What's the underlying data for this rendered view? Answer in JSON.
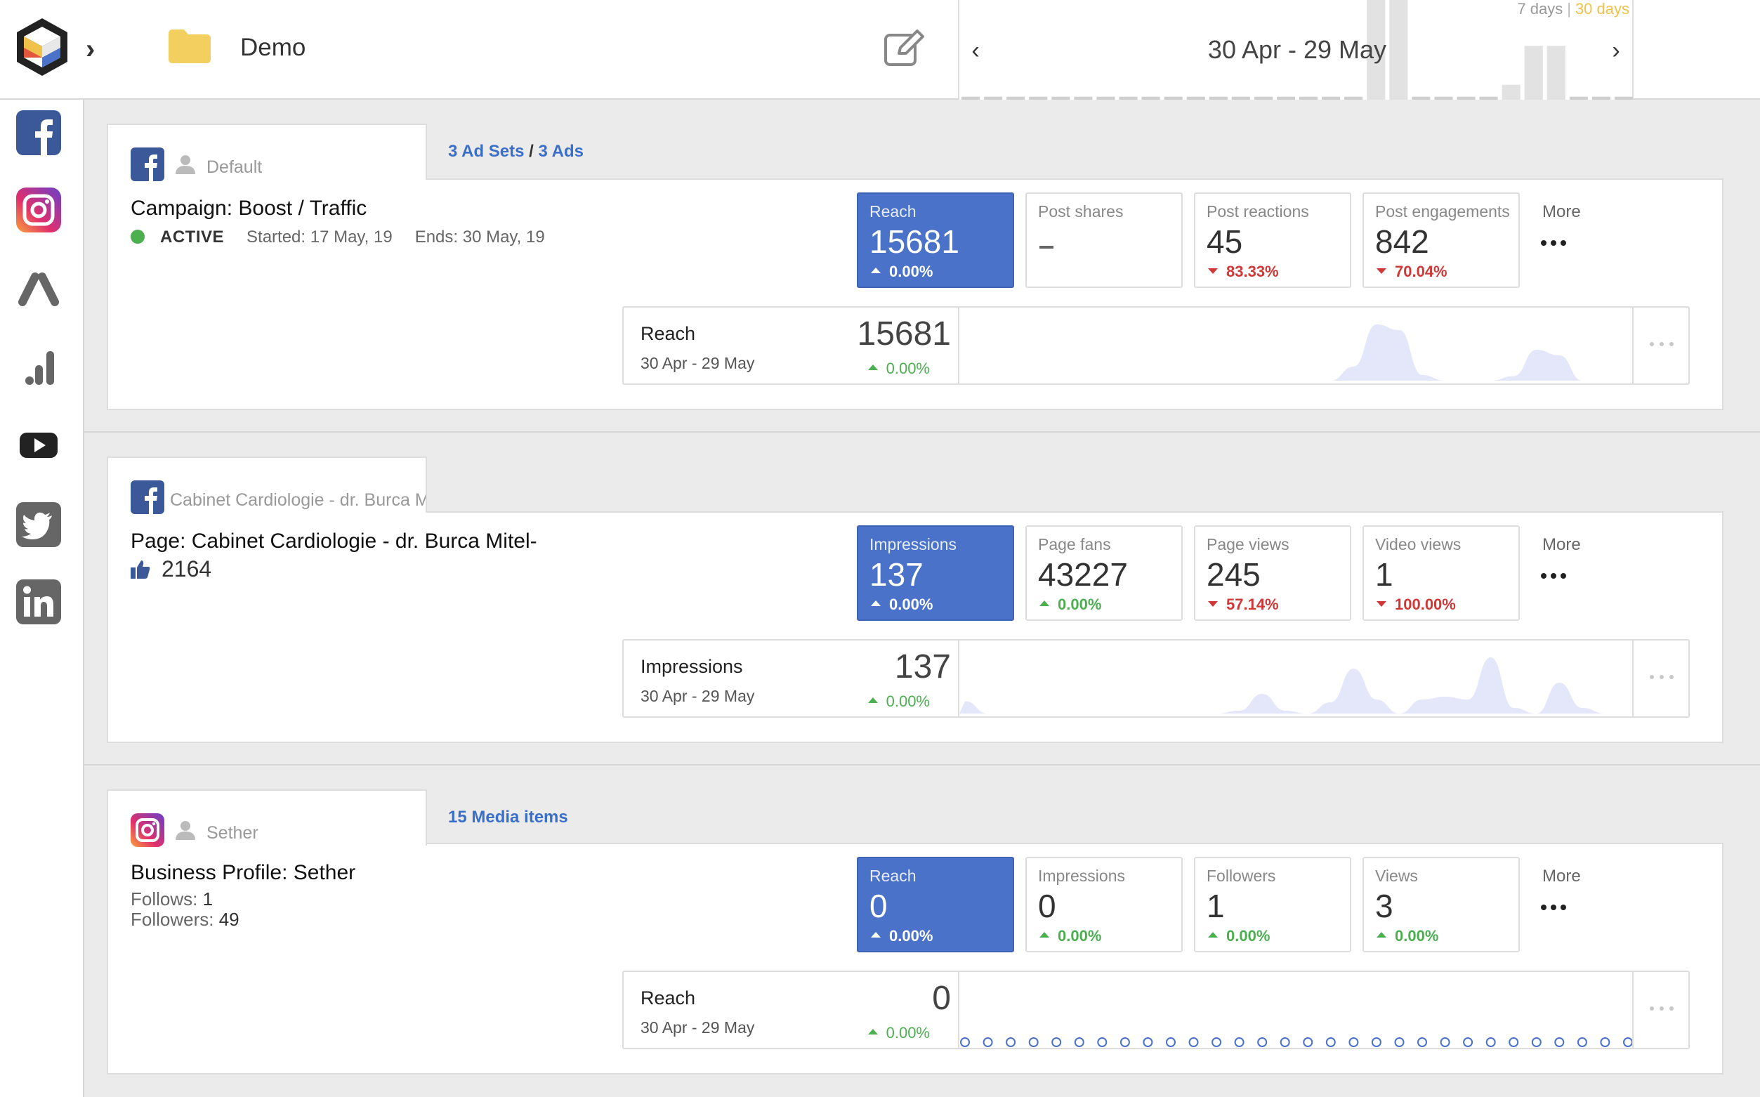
{
  "header": {
    "workspace_name": "Demo",
    "range_options": [
      "7 days",
      "30 days"
    ],
    "active_range": "30 days",
    "date_range": "30 Apr - 29 May",
    "range_separator": "|",
    "icons": {
      "logo": "app-logo",
      "folder": "folder-icon",
      "edit": "edit-icon",
      "prev": "chevron-left-icon",
      "next": "chevron-right-icon"
    },
    "mini_bar_heights": [
      0.03,
      0.03,
      0.03,
      0.03,
      0.03,
      0.03,
      0.03,
      0.03,
      0.03,
      0.03,
      0.03,
      0.03,
      0.03,
      0.03,
      0.03,
      0.03,
      0.03,
      0.03,
      1.0,
      1.0,
      0.03,
      0.03,
      0.03,
      0.03,
      0.15,
      0.54,
      0.54,
      0.03,
      0.03,
      0.03
    ]
  },
  "sidebar": {
    "items": [
      {
        "name": "facebook",
        "icon": "facebook-icon"
      },
      {
        "name": "instagram",
        "icon": "instagram-icon"
      },
      {
        "name": "google-ads",
        "icon": "google-ads-icon"
      },
      {
        "name": "analytics",
        "icon": "analytics-icon"
      },
      {
        "name": "youtube",
        "icon": "youtube-icon"
      },
      {
        "name": "twitter",
        "icon": "twitter-icon"
      },
      {
        "name": "linkedin",
        "icon": "linkedin-icon"
      }
    ]
  },
  "cards": [
    {
      "network": "facebook",
      "account": "Default",
      "meta_adsets": "3 Ad Sets",
      "meta_sep": "/",
      "meta_ads": "3 Ads",
      "title": "Campaign: Boost / Traffic",
      "status": "ACTIVE",
      "started": "Started: 17 May, 19",
      "ends": "Ends: 30 May, 19",
      "metrics": [
        {
          "label": "Reach",
          "value": "15681",
          "change": "0.00%",
          "direction": "up",
          "selected": true
        },
        {
          "label": "Post shares",
          "value": "",
          "change": "",
          "direction": "none",
          "selected": false
        },
        {
          "label": "Post reactions",
          "value": "45",
          "change": "83.33%",
          "direction": "down",
          "selected": false
        },
        {
          "label": "Post engagements",
          "value": "842",
          "change": "70.04%",
          "direction": "down",
          "selected": false
        }
      ],
      "more_label": "More",
      "chart": {
        "metric": "Reach",
        "range": "30 Apr - 29 May",
        "value": "15681",
        "change": "0.00%",
        "series": [
          0,
          0,
          0,
          0,
          0,
          0,
          0,
          0,
          0,
          0,
          0,
          0,
          0,
          0,
          0,
          0,
          0,
          0.25,
          1.0,
          0.9,
          0.1,
          0,
          0,
          0,
          0.08,
          0.55,
          0.45,
          0,
          0,
          0
        ]
      }
    },
    {
      "network": "facebook",
      "account": "Cabinet Cardiologie - dr. Burca Mitel-",
      "title": "Page: Cabinet Cardiologie - dr. Burca Mitel-",
      "fans": "2164",
      "metrics": [
        {
          "label": "Impressions",
          "value": "137",
          "change": "0.00%",
          "direction": "up",
          "selected": true
        },
        {
          "label": "Page fans",
          "value": "43227",
          "change": "0.00%",
          "direction": "up",
          "selected": false
        },
        {
          "label": "Page views",
          "value": "245",
          "change": "57.14%",
          "direction": "down",
          "selected": false
        },
        {
          "label": "Video views",
          "value": "1",
          "change": "100.00%",
          "direction": "down",
          "selected": false
        }
      ],
      "more_label": "More",
      "chart": {
        "metric": "Impressions",
        "range": "30 Apr - 29 May",
        "value": "137",
        "change": "0.00%",
        "series": [
          0.22,
          0,
          0,
          0,
          0,
          0,
          0,
          0,
          0,
          0,
          0,
          0,
          0.05,
          0.35,
          0.05,
          0,
          0.2,
          0.8,
          0.25,
          0,
          0.25,
          0.3,
          0.25,
          1.0,
          0.1,
          0,
          0.55,
          0.1,
          0,
          0
        ]
      }
    },
    {
      "network": "instagram",
      "account": "Sether",
      "meta_media": "15 Media items",
      "title": "Business Profile: Sether",
      "follows_label": "Follows:",
      "follows": "1",
      "followers_label": "Followers:",
      "followers": "49",
      "metrics": [
        {
          "label": "Reach",
          "value": "0",
          "change": "0.00%",
          "direction": "up",
          "selected": true
        },
        {
          "label": "Impressions",
          "value": "0",
          "change": "0.00%",
          "direction": "up",
          "selected": false
        },
        {
          "label": "Followers",
          "value": "1",
          "change": "0.00%",
          "direction": "up",
          "selected": false
        },
        {
          "label": "Views",
          "value": "3",
          "change": "0.00%",
          "direction": "up",
          "selected": false
        }
      ],
      "more_label": "More",
      "chart": {
        "metric": "Reach",
        "range": "30 Apr - 29 May",
        "value": "0",
        "change": "0.00%",
        "series": [
          0,
          0,
          0,
          0,
          0,
          0,
          0,
          0,
          0,
          0,
          0,
          0,
          0,
          0,
          0,
          0,
          0,
          0,
          0,
          0,
          0,
          0,
          0,
          0,
          0,
          0,
          0,
          0,
          0,
          0
        ]
      }
    }
  ],
  "colors": {
    "selected_tile": "#4a72c8",
    "positive": "#4caf50",
    "negative": "#d03838",
    "link": "#3a6fc9",
    "chart_fill": "#e4e6fa",
    "range_active": "#f0c24a"
  }
}
